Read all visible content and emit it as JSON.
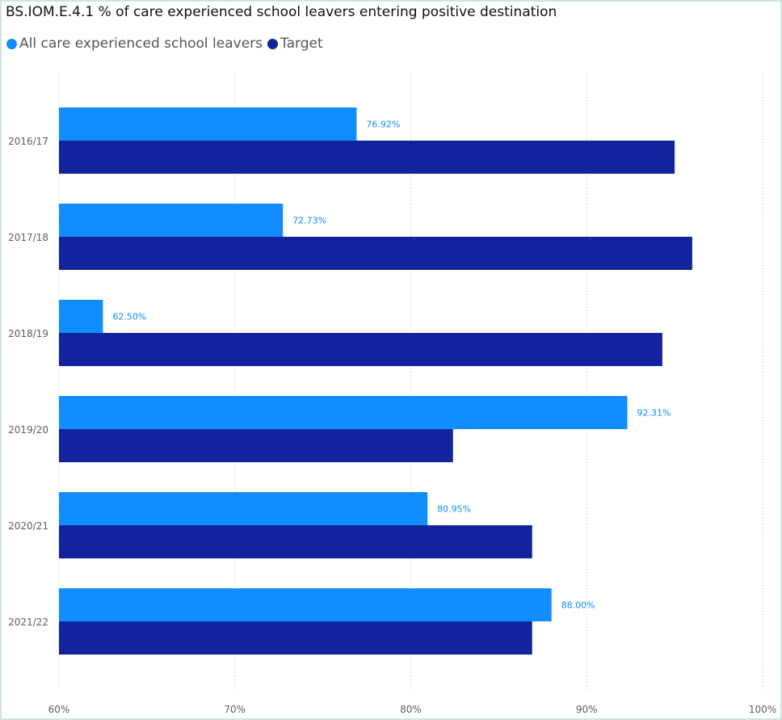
{
  "chart_data": {
    "type": "bar",
    "orientation": "horizontal",
    "title": "BS.IOM.E.4.1 % of care experienced school leavers entering positive destination",
    "categories": [
      "2016/17",
      "2017/18",
      "2018/19",
      "2019/20",
      "2020/21",
      "2021/22"
    ],
    "series": [
      {
        "name": "All care experienced school leavers",
        "color": "#118dff",
        "values": [
          76.92,
          72.73,
          62.5,
          92.31,
          80.95,
          88.0
        ],
        "data_labels": [
          "76.92%",
          "72.73%",
          "62.50%",
          "92.31%",
          "80.95%",
          "88.00%"
        ]
      },
      {
        "name": "Target",
        "color": "#12239e",
        "values": [
          95,
          96,
          94.3,
          82.4,
          86.9,
          86.9
        ]
      }
    ],
    "xlim": [
      60,
      100
    ],
    "xticks": [
      60,
      70,
      80,
      90,
      100
    ],
    "xtick_labels": [
      "60%",
      "70%",
      "80%",
      "90%",
      "100%"
    ],
    "grid": true,
    "legend_position": "top-left",
    "label_color": "#118dff"
  }
}
